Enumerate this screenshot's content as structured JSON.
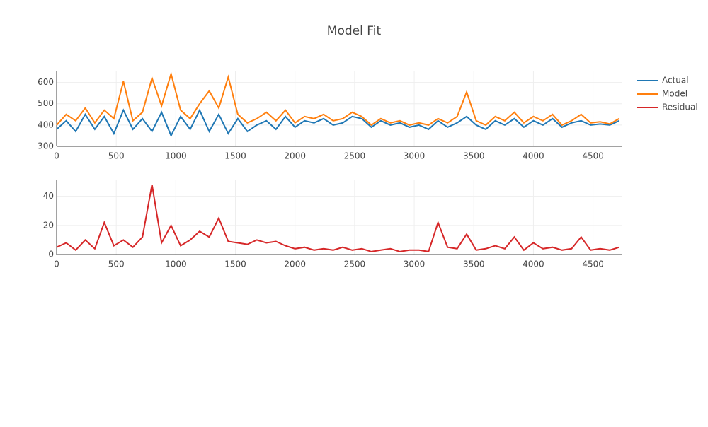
{
  "chart_data": [
    {
      "type": "line",
      "title": "Model Fit",
      "x": [
        0,
        80,
        160,
        240,
        320,
        400,
        480,
        560,
        640,
        720,
        800,
        880,
        960,
        1040,
        1120,
        1200,
        1280,
        1360,
        1440,
        1520,
        1600,
        1680,
        1760,
        1840,
        1920,
        2000,
        2080,
        2160,
        2240,
        2320,
        2400,
        2480,
        2560,
        2640,
        2720,
        2800,
        2880,
        2960,
        3040,
        3120,
        3200,
        3280,
        3360,
        3440,
        3520,
        3600,
        3680,
        3760,
        3840,
        3920,
        4000,
        4080,
        4160,
        4240,
        4320,
        4400,
        4480,
        4560,
        4640,
        4720
      ],
      "series": [
        {
          "name": "Actual",
          "color": "#1f77b4",
          "values": [
            380,
            420,
            370,
            450,
            380,
            440,
            360,
            470,
            380,
            430,
            370,
            460,
            350,
            440,
            380,
            470,
            370,
            450,
            360,
            430,
            370,
            400,
            420,
            380,
            440,
            390,
            420,
            410,
            430,
            400,
            410,
            440,
            430,
            390,
            420,
            400,
            410,
            390,
            400,
            380,
            420,
            390,
            410,
            440,
            400,
            380,
            420,
            400,
            430,
            390,
            420,
            400,
            430,
            390,
            410,
            420,
            400,
            405,
            400,
            420
          ]
        },
        {
          "name": "Model",
          "color": "#ff7f0e",
          "values": [
            400,
            450,
            420,
            480,
            410,
            470,
            430,
            605,
            420,
            460,
            620,
            490,
            640,
            470,
            430,
            500,
            560,
            480,
            625,
            450,
            410,
            430,
            460,
            420,
            470,
            410,
            440,
            430,
            450,
            420,
            430,
            460,
            440,
            400,
            430,
            410,
            420,
            400,
            410,
            400,
            430,
            410,
            440,
            555,
            420,
            400,
            440,
            420,
            460,
            410,
            440,
            420,
            450,
            400,
            420,
            450,
            410,
            415,
            405,
            430
          ]
        }
      ],
      "xlim": [
        0,
        4740
      ],
      "xticks": [
        0,
        500,
        1000,
        1500,
        2000,
        2500,
        3000,
        3500,
        4000,
        4500
      ],
      "ylim": [
        300,
        655
      ],
      "yticks": [
        300,
        400,
        500,
        600
      ],
      "grid": true
    },
    {
      "type": "line",
      "x": [
        0,
        80,
        160,
        240,
        320,
        400,
        480,
        560,
        640,
        720,
        800,
        880,
        960,
        1040,
        1120,
        1200,
        1280,
        1360,
        1440,
        1520,
        1600,
        1680,
        1760,
        1840,
        1920,
        2000,
        2080,
        2160,
        2240,
        2320,
        2400,
        2480,
        2560,
        2640,
        2720,
        2800,
        2880,
        2960,
        3040,
        3120,
        3200,
        3280,
        3360,
        3440,
        3520,
        3600,
        3680,
        3760,
        3840,
        3920,
        4000,
        4080,
        4160,
        4240,
        4320,
        4400,
        4480,
        4560,
        4640,
        4720
      ],
      "series": [
        {
          "name": "Residual",
          "color": "#d62728",
          "values": [
            5,
            8,
            3,
            10,
            4,
            22,
            6,
            10,
            5,
            12,
            48,
            8,
            20,
            6,
            10,
            16,
            12,
            25,
            9,
            8,
            7,
            10,
            8,
            9,
            6,
            4,
            5,
            3,
            4,
            3,
            5,
            3,
            4,
            2,
            3,
            4,
            2,
            3,
            3,
            2,
            22,
            5,
            4,
            14,
            3,
            4,
            6,
            4,
            12,
            3,
            8,
            4,
            5,
            3,
            4,
            12,
            3,
            4,
            3,
            5
          ]
        }
      ],
      "xlim": [
        0,
        4740
      ],
      "xticks": [
        0,
        500,
        1000,
        1500,
        2000,
        2500,
        3000,
        3500,
        4000,
        4500
      ],
      "ylim": [
        0,
        51
      ],
      "yticks": [
        0,
        20,
        40
      ],
      "grid": true
    }
  ]
}
